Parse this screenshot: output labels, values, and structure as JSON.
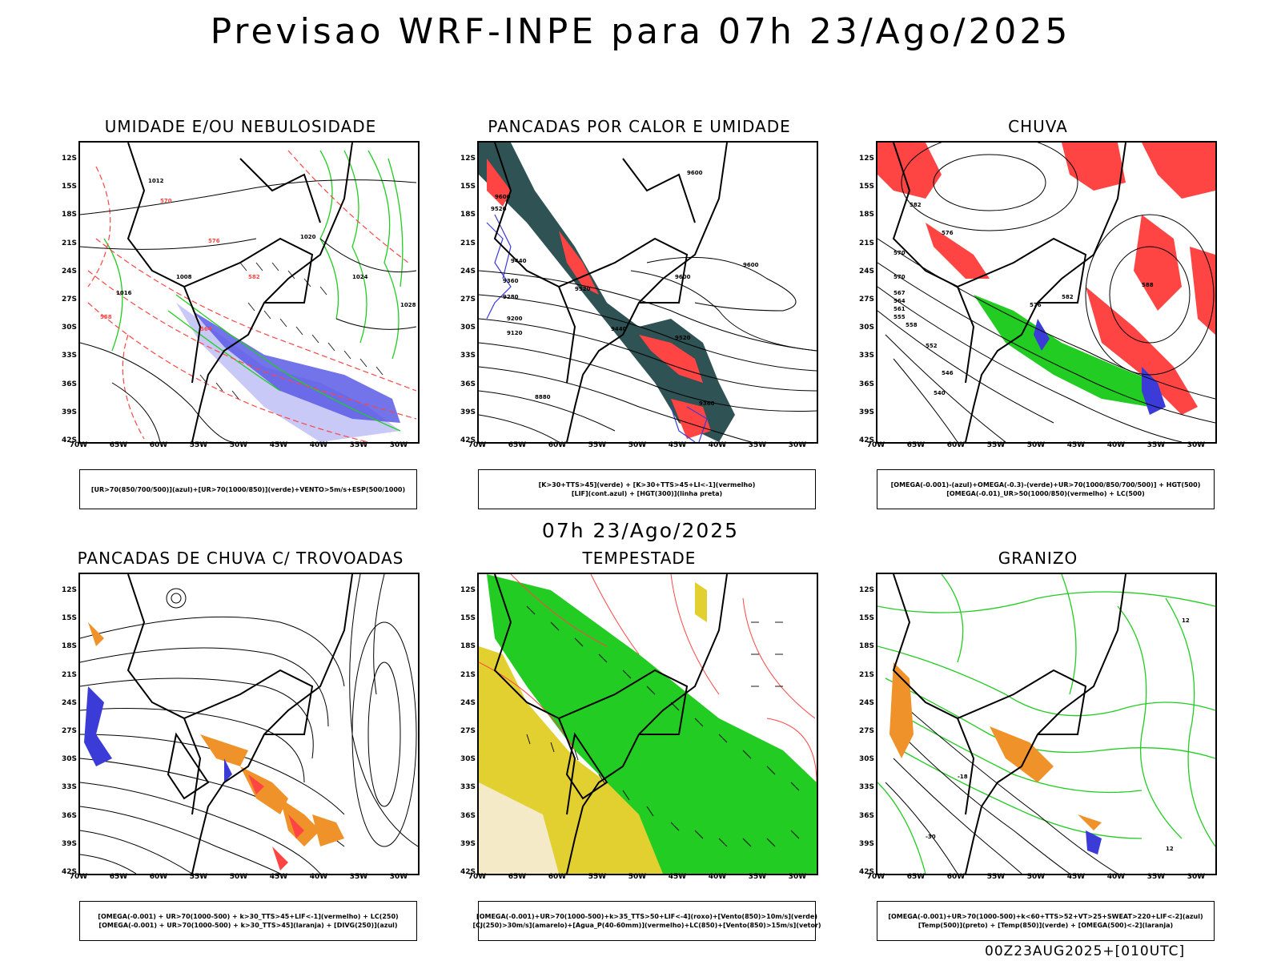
{
  "main_title": "Previsao WRF-INPE  para 07h 23/Ago/2025",
  "mid_title": "07h 23/Ago/2025",
  "footer_stamp": "00Z23AUG2025+[010UTC]",
  "lat_ticks": [
    "12S",
    "15S",
    "18S",
    "21S",
    "24S",
    "27S",
    "30S",
    "33S",
    "36S",
    "39S",
    "42S"
  ],
  "lon_ticks": [
    "70W",
    "65W",
    "60W",
    "55W",
    "50W",
    "45W",
    "40W",
    "35W",
    "30W"
  ],
  "panels": [
    {
      "title": "UMIDADE E/OU NEBULOSIDADE",
      "legend": [
        "[UR>70(850/700/500)](azul)+[UR>70(1000/850)](verde)+VENTO>5m/s+ESP(500/1000)"
      ],
      "contour_labels": [
        "1012",
        "1016",
        "1020",
        "1024",
        "1028",
        "1008",
        "570",
        "576",
        "582",
        "564",
        "558",
        "1020",
        "1016",
        "1012"
      ]
    },
    {
      "title": "PANCADAS POR CALOR E UMIDADE",
      "legend": [
        "[K>30+TTS>45](verde) + [K>30+TTS>45+LI<-1](vermelho)",
        "[LIF](cont.azul) + [HGT(300)](linha preta)"
      ],
      "contour_labels": [
        "9600",
        "9520",
        "9440",
        "9360",
        "9280",
        "9200",
        "9120",
        "9600",
        "9600",
        "9600",
        "9520",
        "9440",
        "9360",
        "8880",
        "9520"
      ]
    },
    {
      "title": "CHUVA",
      "legend": [
        "[OMEGA(-0.001)-(azul)+OMEGA(-0.3)-(verde)+UR>70(1000/850/700/500)] + HGT(500)",
        "[OMEGA(-0.01)_UR>50(1000/850)(vermelho) + LC(500)"
      ],
      "contour_labels": [
        "582",
        "576",
        "570",
        "564",
        "558",
        "552",
        "546",
        "540",
        "588",
        "582",
        "576",
        "570",
        "567",
        "561",
        "555"
      ]
    },
    {
      "title": "PANCADAS DE CHUVA C/ TROVOADAS",
      "legend": [
        "[OMEGA(-0.001) + UR>70(1000-500) + k>30_TTS>45+LIF<-1](vermelho) + LC(250)",
        "[OMEGA(-0.001) + UR>70(1000-500) + k>30_TTS>45](laranja) + [DIVG(250)](azul)"
      ],
      "contour_labels": []
    },
    {
      "title": "TEMPESTADE",
      "legend": [
        "[OMEGA(-0.001)+UR>70(1000-500)+k>35_TTS>50+LIF<-4](roxo)+[Vento(850)>10m/s](verde)",
        "[CJ(250)>30m/s](amarelo)+[Agua_P(40-60mm)](vermelho)+LC(850)+[Vento(850)>15m/s](vetor)"
      ],
      "contour_labels": []
    },
    {
      "title": "GRANIZO",
      "legend": [
        "[OMEGA(-0.001)+UR>70(1000-500)+k<60+TTS>52+VT>25+SWEAT>220+LIF<-2](azul)",
        "[Temp(500)](preto) + [Temp(850)](verde) + [OMEGA(500)<-2](laranja)"
      ],
      "contour_labels": [
        "-18",
        "-30",
        "12",
        "12"
      ]
    }
  ],
  "colors": {
    "humid_blue": "#8b8bf0",
    "humid_blue_dark": "#3b3bd8",
    "green": "#22cc22",
    "red": "#ff4444",
    "dark_teal": "#2f5354",
    "orange": "#f0922a",
    "yellow": "#e2cf30",
    "coast": "#000000"
  }
}
